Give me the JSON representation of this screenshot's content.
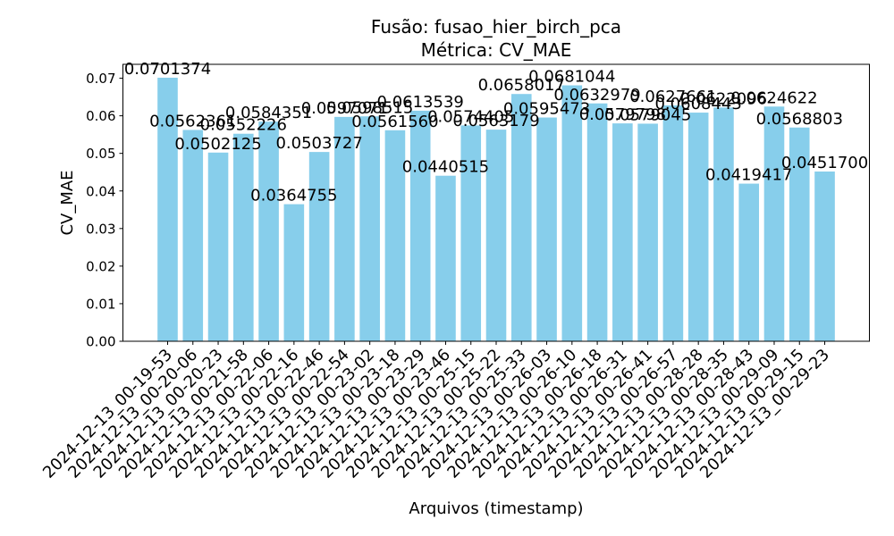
{
  "colors": {
    "bar": "#87CEEB",
    "axis": "#000000",
    "background": "#ffffff"
  },
  "chart_data": {
    "type": "bar",
    "title_line1": "Fusão: fusao_hier_birch_pca",
    "title_line2": "Métrica: CV_MAE",
    "xlabel": "Arquivos (timestamp)",
    "ylabel": "CV_MAE",
    "ylim": [
      0,
      0.0737
    ],
    "yticks": [
      "0.00",
      "0.01",
      "0.02",
      "0.03",
      "0.04",
      "0.05",
      "0.06",
      "0.07"
    ],
    "grid": false,
    "categories": [
      "2024-12-13_00-19-53",
      "2024-12-13_00-20-06",
      "2024-12-13_00-20-23",
      "2024-12-13_00-21-58",
      "2024-12-13_00-22-06",
      "2024-12-13_00-22-16",
      "2024-12-13_00-22-46",
      "2024-12-13_00-22-54",
      "2024-12-13_00-23-02",
      "2024-12-13_00-23-18",
      "2024-12-13_00-23-29",
      "2024-12-13_00-23-46",
      "2024-12-13_00-25-15",
      "2024-12-13_00-25-22",
      "2024-12-13_00-25-33",
      "2024-12-13_00-26-03",
      "2024-12-13_00-26-10",
      "2024-12-13_00-26-18",
      "2024-12-13_00-26-31",
      "2024-12-13_00-26-41",
      "2024-12-13_00-26-57",
      "2024-12-13_00-28-28",
      "2024-12-13_00-28-35",
      "2024-12-13_00-28-43",
      "2024-12-13_00-29-09",
      "2024-12-13_00-29-15",
      "2024-12-13_00-29-23"
    ],
    "values": [
      0.0701374,
      0.0562361,
      0.0502125,
      0.0552226,
      0.0584351,
      0.0364755,
      0.0503727,
      0.0597071,
      0.0598515,
      0.056156,
      0.0613539,
      0.0440515,
      0.0574405,
      0.0563179,
      0.0658017,
      0.0595473,
      0.0681044,
      0.0632979,
      0.0579798,
      0.0579045,
      0.0627661,
      0.0608443,
      0.0622096,
      0.0419417,
      0.0624622,
      0.0568803,
      0.04517
    ],
    "value_labels": [
      "0.0701374",
      "0.0562361",
      "0.0502125",
      "0.0552226",
      "0.0584351",
      "0.0364755",
      "0.0503727",
      "0.0597071",
      "0.0598515",
      "0.0561560",
      "0.0613539",
      "0.0440515",
      "0.0574405",
      "0.0563179",
      "0.0658017",
      "0.0595473",
      "0.0681044",
      "0.0632979",
      "0.0579798",
      "0.0579045",
      "0.0627661",
      "0.0608443",
      "0.0622096",
      "0.0419417",
      "0.0624622",
      "0.0568803",
      "0.0451700"
    ]
  }
}
